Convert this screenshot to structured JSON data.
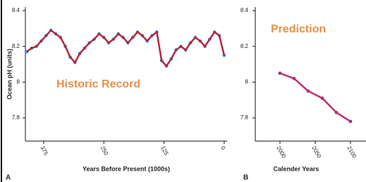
{
  "y_axis_label": "Ocean pH (units)",
  "chart_data": [
    {
      "type": "line",
      "panel_label": "A",
      "annotation": "Historic Record",
      "annotation_color": "#e8914a",
      "x_label": "Years Before Present (1000s)",
      "x": [
        410,
        400,
        390,
        380,
        370,
        360,
        350,
        340,
        330,
        320,
        310,
        300,
        290,
        280,
        270,
        260,
        250,
        240,
        230,
        220,
        210,
        200,
        190,
        180,
        170,
        160,
        150,
        140,
        130,
        120,
        110,
        100,
        90,
        80,
        70,
        60,
        50,
        40,
        30,
        20,
        10,
        0
      ],
      "values": [
        8.17,
        8.19,
        8.2,
        8.23,
        8.26,
        8.29,
        8.27,
        8.25,
        8.2,
        8.14,
        8.11,
        8.16,
        8.19,
        8.22,
        8.24,
        8.27,
        8.25,
        8.22,
        8.24,
        8.27,
        8.25,
        8.22,
        8.25,
        8.28,
        8.26,
        8.23,
        8.26,
        8.28,
        8.12,
        8.09,
        8.13,
        8.18,
        8.2,
        8.18,
        8.22,
        8.25,
        8.23,
        8.2,
        8.24,
        8.28,
        8.26,
        8.15
      ],
      "color": "#b3283a",
      "marker_color": "#3d8fd8",
      "xlim": [
        413,
        -6
      ],
      "xticks": [
        375,
        250,
        125,
        0
      ],
      "ylim": [
        7.67,
        8.42
      ],
      "yticks": [
        8.4,
        8.2,
        8.0,
        7.8
      ]
    },
    {
      "type": "line",
      "panel_label": "B",
      "annotation": "Prediction",
      "annotation_color": "#e8914a",
      "x_label": "Calender Years",
      "x": [
        2000,
        2020,
        2040,
        2060,
        2080,
        2100
      ],
      "values": [
        8.05,
        8.02,
        7.95,
        7.91,
        7.83,
        7.78
      ],
      "color": "#c2306c",
      "marker_color": "#7a3aa0",
      "xlim": [
        1965,
        2122
      ],
      "xticks": [
        2000,
        2050,
        2100
      ],
      "ylim": [
        7.67,
        8.42
      ],
      "yticks": [
        8.4,
        8.2,
        8.0,
        7.8
      ]
    }
  ]
}
